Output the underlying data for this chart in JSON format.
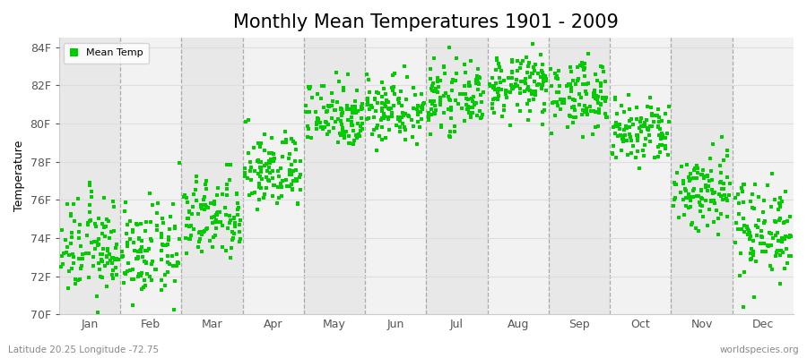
{
  "title": "Monthly Mean Temperatures 1901 - 2009",
  "ylabel": "Temperature",
  "xlabel": "",
  "ylim": [
    70,
    84.5
  ],
  "ytick_labels": [
    "70F",
    "72F",
    "74F",
    "76F",
    "78F",
    "80F",
    "82F",
    "84F"
  ],
  "ytick_values": [
    70,
    72,
    74,
    76,
    78,
    80,
    82,
    84
  ],
  "months": [
    "Jan",
    "Feb",
    "Mar",
    "Apr",
    "May",
    "Jun",
    "Jul",
    "Aug",
    "Sep",
    "Oct",
    "Nov",
    "Dec"
  ],
  "dot_color": "#00cc00",
  "stripe_color_light": "#f2f2f2",
  "stripe_color_dark": "#e8e8e8",
  "n_years": 109,
  "subtitle": "Latitude 20.25 Longitude -72.75",
  "watermark": "worldspecies.org",
  "mean_temps_by_month": [
    73.5,
    73.2,
    75.0,
    77.5,
    80.5,
    80.8,
    81.3,
    82.0,
    81.5,
    79.5,
    76.5,
    74.5
  ],
  "std_by_month": [
    1.3,
    1.2,
    1.1,
    1.0,
    0.9,
    0.9,
    0.8,
    0.8,
    0.9,
    0.9,
    1.1,
    1.3
  ],
  "title_fontsize": 15,
  "label_fontsize": 9,
  "legend_fontsize": 8,
  "dot_size": 5,
  "dashed_line_color": "#999999"
}
